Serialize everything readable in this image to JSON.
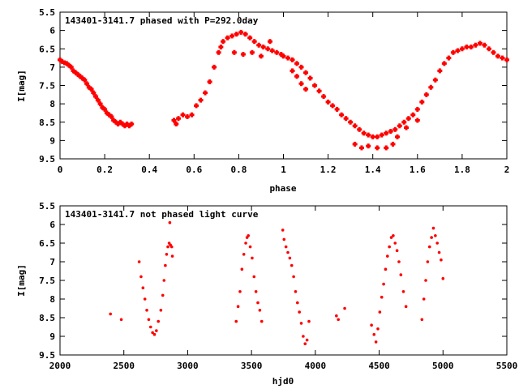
{
  "colors": {
    "points": "#ff0000",
    "axes": "#000000",
    "background": "#ffffff"
  },
  "chart_data": [
    {
      "type": "scatter",
      "title": "143401-3141.7 phased with P=292.0day",
      "xlabel": "phase",
      "ylabel": "I[mag]",
      "xlim": [
        0,
        2
      ],
      "ylim": [
        5.5,
        9.5
      ],
      "y_inverted": true,
      "grid": false,
      "marker": "filled-cross",
      "xticks": [
        0,
        0.2,
        0.4,
        0.6,
        0.8,
        1,
        1.2,
        1.4,
        1.6,
        1.8,
        2
      ],
      "xtick_labels": [
        "0",
        "0.2",
        "0.4",
        "0.6",
        "0.8",
        "1",
        "1.2",
        "1.4",
        "1.6",
        "1.8",
        "2"
      ],
      "yticks": [
        5.5,
        6,
        6.5,
        7,
        7.5,
        8,
        8.5,
        9,
        9.5
      ],
      "ytick_labels": [
        "5.5",
        "6",
        "6.5",
        "7",
        "7.5",
        "8",
        "8.5",
        "9",
        "9.5"
      ],
      "series": [
        {
          "points": [
            [
              0.0,
              6.8
            ],
            [
              0.01,
              6.85
            ],
            [
              0.02,
              6.88
            ],
            [
              0.03,
              6.9
            ],
            [
              0.04,
              6.95
            ],
            [
              0.05,
              7.0
            ],
            [
              0.06,
              7.1
            ],
            [
              0.07,
              7.15
            ],
            [
              0.08,
              7.2
            ],
            [
              0.09,
              7.25
            ],
            [
              0.1,
              7.3
            ],
            [
              0.11,
              7.35
            ],
            [
              0.12,
              7.45
            ],
            [
              0.13,
              7.55
            ],
            [
              0.14,
              7.6
            ],
            [
              0.15,
              7.7
            ],
            [
              0.16,
              7.8
            ],
            [
              0.17,
              7.9
            ],
            [
              0.18,
              8.0
            ],
            [
              0.19,
              8.1
            ],
            [
              0.2,
              8.15
            ],
            [
              0.21,
              8.25
            ],
            [
              0.22,
              8.3
            ],
            [
              0.23,
              8.35
            ],
            [
              0.24,
              8.45
            ],
            [
              0.25,
              8.5
            ],
            [
              0.26,
              8.55
            ],
            [
              0.27,
              8.5
            ],
            [
              0.28,
              8.55
            ],
            [
              0.29,
              8.6
            ],
            [
              0.3,
              8.55
            ],
            [
              0.31,
              8.6
            ],
            [
              0.32,
              8.55
            ],
            [
              0.51,
              8.45
            ],
            [
              0.52,
              8.55
            ],
            [
              0.53,
              8.4
            ],
            [
              0.55,
              8.3
            ],
            [
              0.57,
              8.35
            ],
            [
              0.59,
              8.3
            ],
            [
              0.61,
              8.05
            ],
            [
              0.63,
              7.9
            ],
            [
              0.65,
              7.7
            ],
            [
              0.67,
              7.4
            ],
            [
              0.69,
              7.0
            ],
            [
              0.71,
              6.6
            ],
            [
              0.72,
              6.45
            ],
            [
              0.73,
              6.3
            ],
            [
              0.75,
              6.2
            ],
            [
              0.77,
              6.15
            ],
            [
              0.79,
              6.1
            ],
            [
              0.81,
              6.05
            ],
            [
              0.83,
              6.1
            ],
            [
              0.85,
              6.2
            ],
            [
              0.87,
              6.3
            ],
            [
              0.89,
              6.4
            ],
            [
              0.91,
              6.45
            ],
            [
              0.93,
              6.5
            ],
            [
              0.95,
              6.55
            ],
            [
              0.97,
              6.6
            ],
            [
              0.99,
              6.65
            ],
            [
              1.0,
              6.7
            ],
            [
              1.02,
              6.75
            ],
            [
              1.04,
              6.8
            ],
            [
              1.06,
              6.9
            ],
            [
              1.08,
              7.0
            ],
            [
              1.1,
              7.15
            ],
            [
              1.12,
              7.3
            ],
            [
              1.14,
              7.5
            ],
            [
              1.16,
              7.65
            ],
            [
              1.18,
              7.8
            ],
            [
              1.2,
              7.95
            ],
            [
              1.22,
              8.05
            ],
            [
              1.24,
              8.15
            ],
            [
              1.26,
              8.3
            ],
            [
              1.28,
              8.4
            ],
            [
              1.3,
              8.5
            ],
            [
              1.32,
              8.6
            ],
            [
              1.34,
              8.7
            ],
            [
              1.36,
              8.8
            ],
            [
              1.38,
              8.85
            ],
            [
              1.4,
              8.9
            ],
            [
              1.42,
              8.9
            ],
            [
              1.44,
              8.85
            ],
            [
              1.46,
              8.8
            ],
            [
              1.48,
              8.75
            ],
            [
              1.5,
              8.7
            ],
            [
              1.52,
              8.6
            ],
            [
              1.54,
              8.5
            ],
            [
              1.56,
              8.4
            ],
            [
              1.58,
              8.3
            ],
            [
              1.6,
              8.15
            ],
            [
              1.62,
              7.95
            ],
            [
              1.64,
              7.75
            ],
            [
              1.66,
              7.55
            ],
            [
              1.68,
              7.35
            ],
            [
              1.7,
              7.1
            ],
            [
              1.72,
              6.9
            ],
            [
              1.74,
              6.75
            ],
            [
              1.76,
              6.6
            ],
            [
              1.78,
              6.55
            ],
            [
              1.8,
              6.5
            ],
            [
              1.82,
              6.45
            ],
            [
              1.84,
              6.45
            ],
            [
              1.86,
              6.4
            ],
            [
              1.88,
              6.35
            ],
            [
              1.9,
              6.4
            ],
            [
              1.92,
              6.5
            ],
            [
              1.94,
              6.6
            ],
            [
              1.96,
              6.7
            ],
            [
              1.98,
              6.75
            ],
            [
              2.0,
              6.8
            ],
            [
              1.32,
              9.1
            ],
            [
              1.35,
              9.2
            ],
            [
              1.38,
              9.15
            ],
            [
              1.42,
              9.2
            ],
            [
              1.46,
              9.2
            ],
            [
              1.49,
              9.1
            ],
            [
              1.51,
              8.9
            ],
            [
              1.55,
              8.65
            ],
            [
              1.6,
              8.45
            ],
            [
              0.78,
              6.6
            ],
            [
              0.82,
              6.65
            ],
            [
              0.86,
              6.6
            ],
            [
              0.9,
              6.7
            ],
            [
              0.94,
              6.3
            ],
            [
              1.04,
              7.1
            ],
            [
              1.06,
              7.25
            ],
            [
              1.08,
              7.45
            ],
            [
              1.1,
              7.6
            ]
          ]
        }
      ]
    },
    {
      "type": "scatter",
      "title": "143401-3141.7 not phased light curve",
      "xlabel": "hjd0",
      "ylabel": "I[mag]",
      "xlim": [
        2000,
        5500
      ],
      "ylim": [
        5.5,
        9.5
      ],
      "y_inverted": true,
      "grid": false,
      "marker": "dot",
      "xticks": [
        2000,
        2500,
        3000,
        3500,
        4000,
        4500,
        5000,
        5500
      ],
      "xtick_labels": [
        "2000",
        "2500",
        "3000",
        "3500",
        "4000",
        "4500",
        "5000",
        "5500"
      ],
      "yticks": [
        5.5,
        6,
        6.5,
        7,
        7.5,
        8,
        8.5,
        9,
        9.5
      ],
      "ytick_labels": [
        "5.5",
        "6",
        "6.5",
        "7",
        "7.5",
        "8",
        "8.5",
        "9",
        "9.5"
      ],
      "series": [
        {
          "points": [
            [
              2395,
              8.4
            ],
            [
              2480,
              8.55
            ],
            [
              2620,
              7.0
            ],
            [
              2635,
              7.4
            ],
            [
              2650,
              7.7
            ],
            [
              2665,
              8.0
            ],
            [
              2680,
              8.3
            ],
            [
              2695,
              8.55
            ],
            [
              2710,
              8.75
            ],
            [
              2725,
              8.9
            ],
            [
              2740,
              8.95
            ],
            [
              2755,
              8.85
            ],
            [
              2770,
              8.6
            ],
            [
              2790,
              8.3
            ],
            [
              2805,
              7.9
            ],
            [
              2815,
              7.5
            ],
            [
              2825,
              7.1
            ],
            [
              2835,
              6.8
            ],
            [
              2845,
              6.6
            ],
            [
              2855,
              6.5
            ],
            [
              2865,
              6.55
            ],
            [
              2875,
              6.6
            ],
            [
              2880,
              6.85
            ],
            [
              2860,
              5.95
            ],
            [
              3380,
              8.6
            ],
            [
              3395,
              8.2
            ],
            [
              3410,
              7.8
            ],
            [
              3425,
              7.2
            ],
            [
              3440,
              6.8
            ],
            [
              3455,
              6.5
            ],
            [
              3465,
              6.35
            ],
            [
              3475,
              6.3
            ],
            [
              3490,
              6.6
            ],
            [
              3505,
              6.9
            ],
            [
              3520,
              7.4
            ],
            [
              3535,
              7.8
            ],
            [
              3550,
              8.1
            ],
            [
              3565,
              8.3
            ],
            [
              3580,
              8.6
            ],
            [
              3745,
              6.15
            ],
            [
              3755,
              6.4
            ],
            [
              3770,
              6.6
            ],
            [
              3785,
              6.75
            ],
            [
              3800,
              6.9
            ],
            [
              3815,
              7.1
            ],
            [
              3830,
              7.4
            ],
            [
              3845,
              7.8
            ],
            [
              3860,
              8.1
            ],
            [
              3875,
              8.35
            ],
            [
              3890,
              8.65
            ],
            [
              3905,
              9.0
            ],
            [
              3920,
              9.2
            ],
            [
              3935,
              9.1
            ],
            [
              3950,
              8.6
            ],
            [
              4165,
              8.45
            ],
            [
              4180,
              8.55
            ],
            [
              4230,
              8.25
            ],
            [
              4440,
              8.7
            ],
            [
              4460,
              8.95
            ],
            [
              4475,
              9.15
            ],
            [
              4490,
              8.8
            ],
            [
              4505,
              8.35
            ],
            [
              4520,
              7.95
            ],
            [
              4535,
              7.6
            ],
            [
              4550,
              7.2
            ],
            [
              4565,
              6.85
            ],
            [
              4580,
              6.6
            ],
            [
              4595,
              6.35
            ],
            [
              4610,
              6.3
            ],
            [
              4625,
              6.5
            ],
            [
              4640,
              6.7
            ],
            [
              4655,
              7.0
            ],
            [
              4670,
              7.35
            ],
            [
              4690,
              7.8
            ],
            [
              4710,
              8.2
            ],
            [
              4835,
              8.55
            ],
            [
              4850,
              8.0
            ],
            [
              4865,
              7.5
            ],
            [
              4880,
              7.0
            ],
            [
              4895,
              6.6
            ],
            [
              4910,
              6.35
            ],
            [
              4925,
              6.1
            ],
            [
              4940,
              6.3
            ],
            [
              4955,
              6.5
            ],
            [
              4970,
              6.75
            ],
            [
              4985,
              6.95
            ],
            [
              5000,
              7.45
            ]
          ]
        }
      ]
    }
  ]
}
